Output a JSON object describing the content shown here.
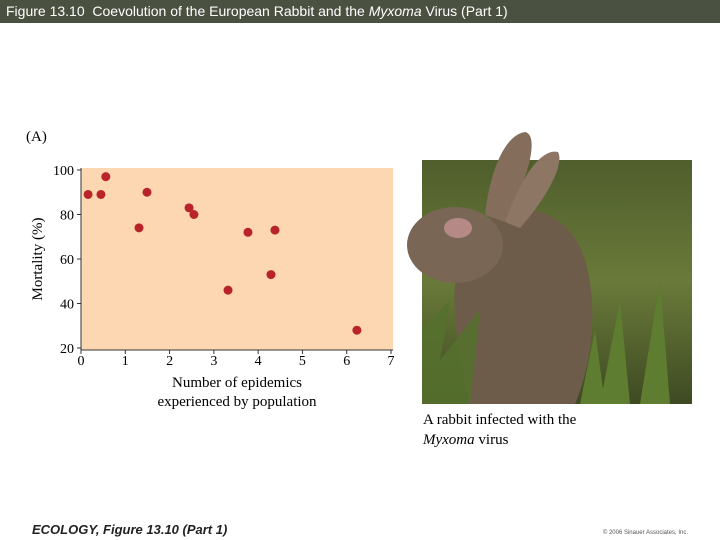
{
  "header": {
    "title_parts": [
      "Figure 13.10  Coevolution of the European Rabbit and the ",
      "Myxoma",
      " Virus (Part 1)"
    ]
  },
  "chart_data": {
    "type": "scatter",
    "panel_label": "(A)",
    "ylabel": "Mortality (%)",
    "xlabel": [
      "Number of epidemics",
      "experienced by population"
    ],
    "x": [
      0.16,
      0.45,
      0.56,
      1.49,
      1.31,
      2.44,
      2.55,
      3.32,
      3.77,
      4.38,
      4.29,
      6.23
    ],
    "values": [
      89,
      89,
      97,
      90,
      74,
      83,
      80,
      46,
      72,
      73,
      53,
      28
    ],
    "color": "#b8242a",
    "background": "#fcd7b2",
    "xlim": [
      0,
      7
    ],
    "xticks": [
      0,
      1,
      2,
      3,
      4,
      5,
      6,
      7
    ],
    "ylim": [
      20,
      100
    ],
    "yticks": [
      20,
      40,
      60,
      80,
      100
    ],
    "grid": false
  },
  "caption": {
    "parts": [
      "A rabbit infected with the",
      "Myxoma",
      " virus"
    ]
  },
  "footer": {
    "left": "ECOLOGY, Figure 13.10 (Part 1)",
    "right": "© 2006 Sinauer Associates, Inc."
  }
}
